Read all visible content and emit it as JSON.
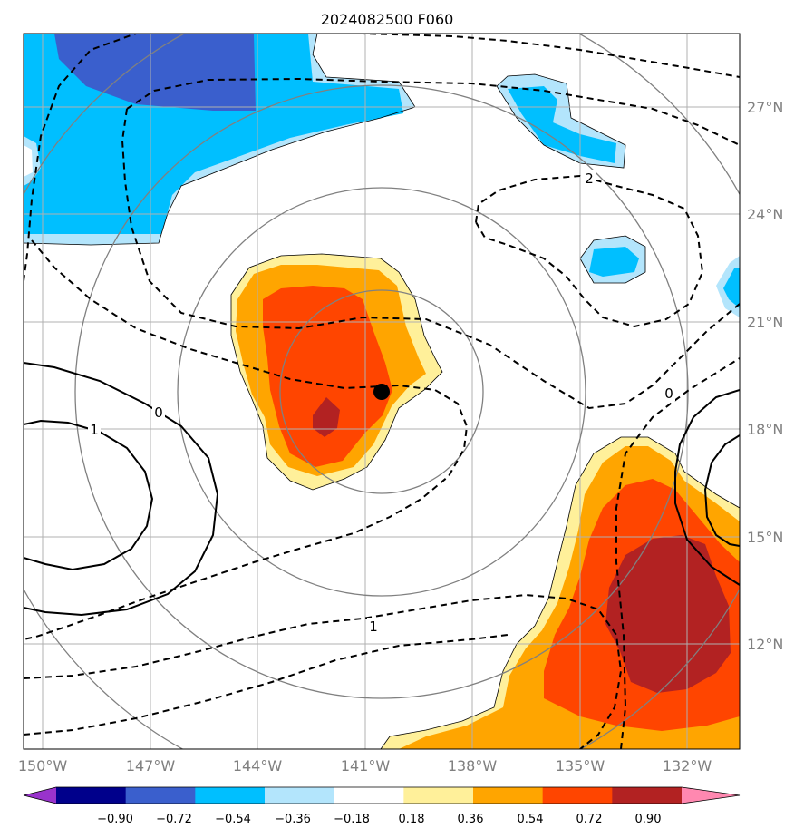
{
  "title": "2024082500 F060",
  "map": {
    "lon_ticks": [
      "150°W",
      "147°W",
      "144°W",
      "141°W",
      "138°W",
      "135°W",
      "132°W"
    ],
    "lat_ticks": [
      "27°N",
      "24°N",
      "21°N",
      "18°N",
      "15°N",
      "12°N"
    ],
    "contour_labels": {
      "solid_one": "1",
      "solid_zero": "0",
      "dash_two": "2",
      "dash_zero": "0",
      "dash_one": "1"
    },
    "storm_center_marker": "black-dot",
    "grid": true,
    "range_rings": true
  },
  "colorbar": {
    "levels": [
      "−0.90",
      "−0.72",
      "−0.54",
      "−0.36",
      "−0.18",
      "0.18",
      "0.36",
      "0.54",
      "0.72",
      "0.90"
    ],
    "colors": [
      "#9933cc",
      "#00008b",
      "#3a5fcd",
      "#00bfff",
      "#b3e5fc",
      "#ffffff",
      "#fff09a",
      "#ffa500",
      "#ff4500",
      "#b22222",
      "#ff88b0"
    ]
  }
}
